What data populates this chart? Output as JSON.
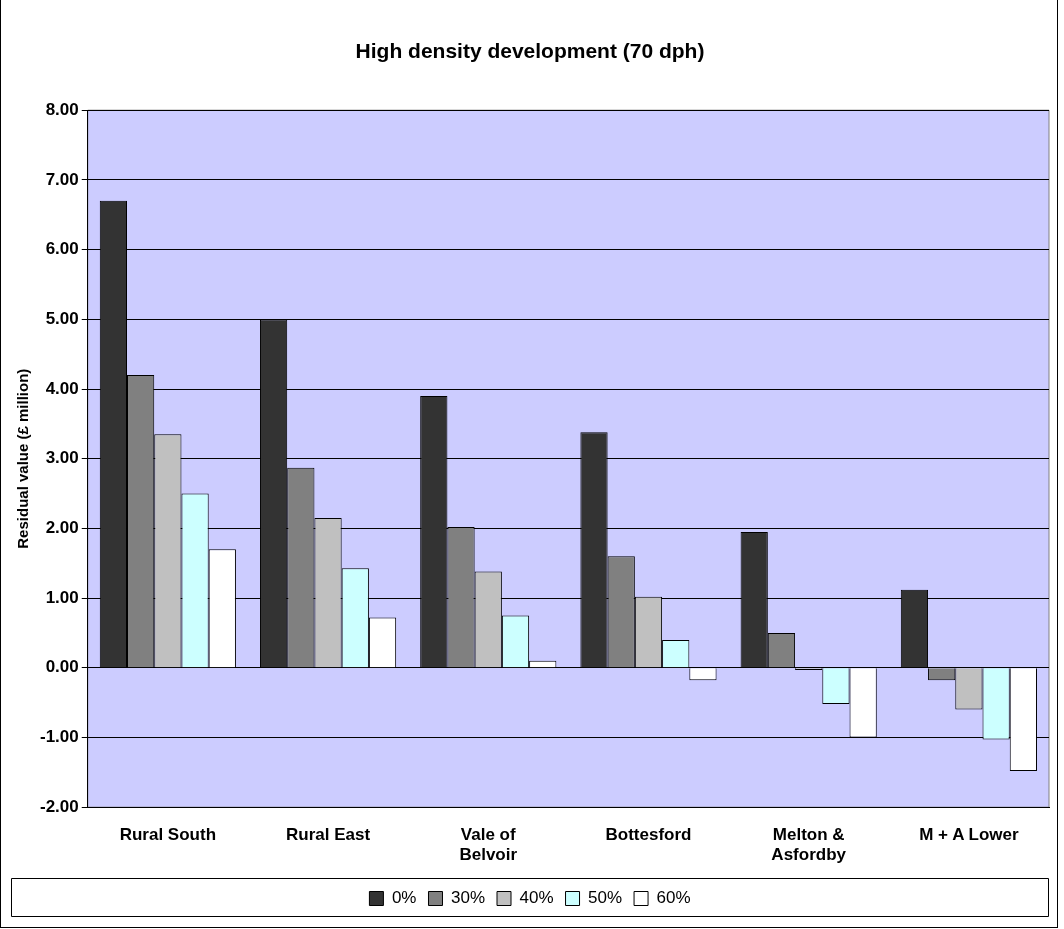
{
  "chart_data": {
    "type": "bar",
    "title": "High density development (70 dph)",
    "ylabel": "Residual value (£ million)",
    "categories": [
      "Rural South",
      "Rural East",
      "Vale of Belvoir",
      "Bottesford",
      "Melton & Asfordby",
      "M + A Lower"
    ],
    "series": [
      {
        "name": "0%",
        "color": "#333333",
        "values": [
          6.7,
          5.0,
          3.9,
          3.38,
          1.95,
          1.12
        ]
      },
      {
        "name": "30%",
        "color": "#808080",
        "values": [
          4.2,
          2.87,
          2.02,
          1.6,
          0.5,
          -0.18
        ]
      },
      {
        "name": "40%",
        "color": "#c0c0c0",
        "values": [
          3.35,
          2.15,
          1.38,
          1.02,
          -0.03,
          -0.6
        ]
      },
      {
        "name": "50%",
        "color": "#ccffff",
        "values": [
          2.5,
          1.43,
          0.75,
          0.4,
          -0.52,
          -1.03
        ]
      },
      {
        "name": "60%",
        "color": "#ffffff",
        "values": [
          1.7,
          0.72,
          0.1,
          -0.18,
          -1.0,
          -1.48
        ]
      }
    ],
    "ylim": [
      -2,
      8
    ],
    "yticks": [
      {
        "value": -2,
        "label": "-2.00"
      },
      {
        "value": -1,
        "label": "-1.00"
      },
      {
        "value": 0,
        "label": "0.00"
      },
      {
        "value": 1,
        "label": "1.00"
      },
      {
        "value": 2,
        "label": "2.00"
      },
      {
        "value": 3,
        "label": "3.00"
      },
      {
        "value": 4,
        "label": "4.00"
      },
      {
        "value": 5,
        "label": "5.00"
      },
      {
        "value": 6,
        "label": "6.00"
      },
      {
        "value": 7,
        "label": "7.00"
      },
      {
        "value": 8,
        "label": "8.00"
      }
    ],
    "grid": "y",
    "legend": "bottom"
  }
}
